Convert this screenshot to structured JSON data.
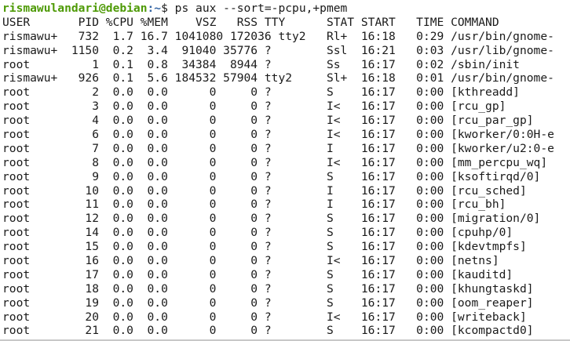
{
  "prompt": {
    "user_host": "rismawulandari@debian",
    "path": ":~",
    "symbol": "$ ",
    "command": "ps aux --sort=-pcpu,+pmem"
  },
  "header": "USER       PID %CPU %MEM    VSZ   RSS TTY      STAT START   TIME COMMAND",
  "rows": [
    "rismawu+   732  1.7 16.7 1041080 172036 tty2   Rl+  16:18   0:29 /usr/bin/gnome-",
    "rismawu+  1150  0.2  3.4  91040 35776 ?        Ssl  16:21   0:03 /usr/lib/gnome-",
    "root         1  0.1  0.8  34384  8944 ?        Ss   16:17   0:02 /sbin/init",
    "rismawu+   926  0.1  5.6 184532 57904 tty2     Sl+  16:18   0:01 /usr/bin/gnome-",
    "root         2  0.0  0.0      0     0 ?        S    16:17   0:00 [kthreadd]",
    "root         3  0.0  0.0      0     0 ?        I<   16:17   0:00 [rcu_gp]",
    "root         4  0.0  0.0      0     0 ?        I<   16:17   0:00 [rcu_par_gp]",
    "root         6  0.0  0.0      0     0 ?        I<   16:17   0:00 [kworker/0:0H-e",
    "root         7  0.0  0.0      0     0 ?        I    16:17   0:00 [kworker/u2:0-e",
    "root         8  0.0  0.0      0     0 ?        I<   16:17   0:00 [mm_percpu_wq]",
    "root         9  0.0  0.0      0     0 ?        S    16:17   0:00 [ksoftirqd/0]",
    "root        10  0.0  0.0      0     0 ?        I    16:17   0:00 [rcu_sched]",
    "root        11  0.0  0.0      0     0 ?        I    16:17   0:00 [rcu_bh]",
    "root        12  0.0  0.0      0     0 ?        S    16:17   0:00 [migration/0]",
    "root        14  0.0  0.0      0     0 ?        S    16:17   0:00 [cpuhp/0]",
    "root        15  0.0  0.0      0     0 ?        S    16:17   0:00 [kdevtmpfs]",
    "root        16  0.0  0.0      0     0 ?        I<   16:17   0:00 [netns]",
    "root        17  0.0  0.0      0     0 ?        S    16:17   0:00 [kauditd]",
    "root        18  0.0  0.0      0     0 ?        S    16:17   0:00 [khungtaskd]",
    "root        19  0.0  0.0      0     0 ?        S    16:17   0:00 [oom_reaper]",
    "root        20  0.0  0.0      0     0 ?        I<   16:17   0:00 [writeback]",
    "root        21  0.0  0.0      0     0 ?        S    16:17   0:00 [kcompactd0]"
  ]
}
